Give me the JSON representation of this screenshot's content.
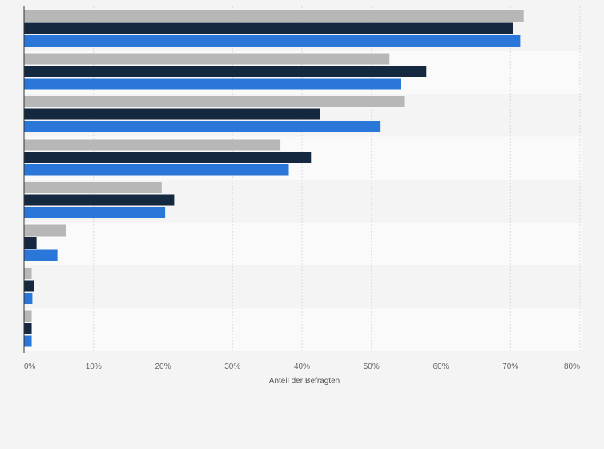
{
  "chart_data": {
    "type": "bar",
    "orientation": "horizontal",
    "title": "",
    "xlabel": "Anteil der Befragten",
    "ylabel": "",
    "xlim": [
      0,
      80
    ],
    "x_ticks": [
      "0%",
      "10%",
      "20%",
      "30%",
      "40%",
      "50%",
      "60%",
      "70%",
      "80%"
    ],
    "categories": [
      "",
      "",
      "",
      "",
      "",
      "",
      "",
      ""
    ],
    "series": [
      {
        "color": "#b7b7b7",
        "values": [
          71.9,
          52.6,
          54.7,
          36.9,
          19.8,
          6.0,
          1.1,
          1.1
        ]
      },
      {
        "color": "#14293f",
        "values": [
          70.4,
          57.9,
          42.6,
          41.3,
          21.6,
          1.8,
          1.4,
          1.1
        ]
      },
      {
        "color": "#2a76d9",
        "values": [
          71.4,
          54.2,
          51.2,
          38.1,
          20.3,
          4.8,
          1.2,
          1.1
        ]
      }
    ],
    "grid": true,
    "legend": "none"
  }
}
